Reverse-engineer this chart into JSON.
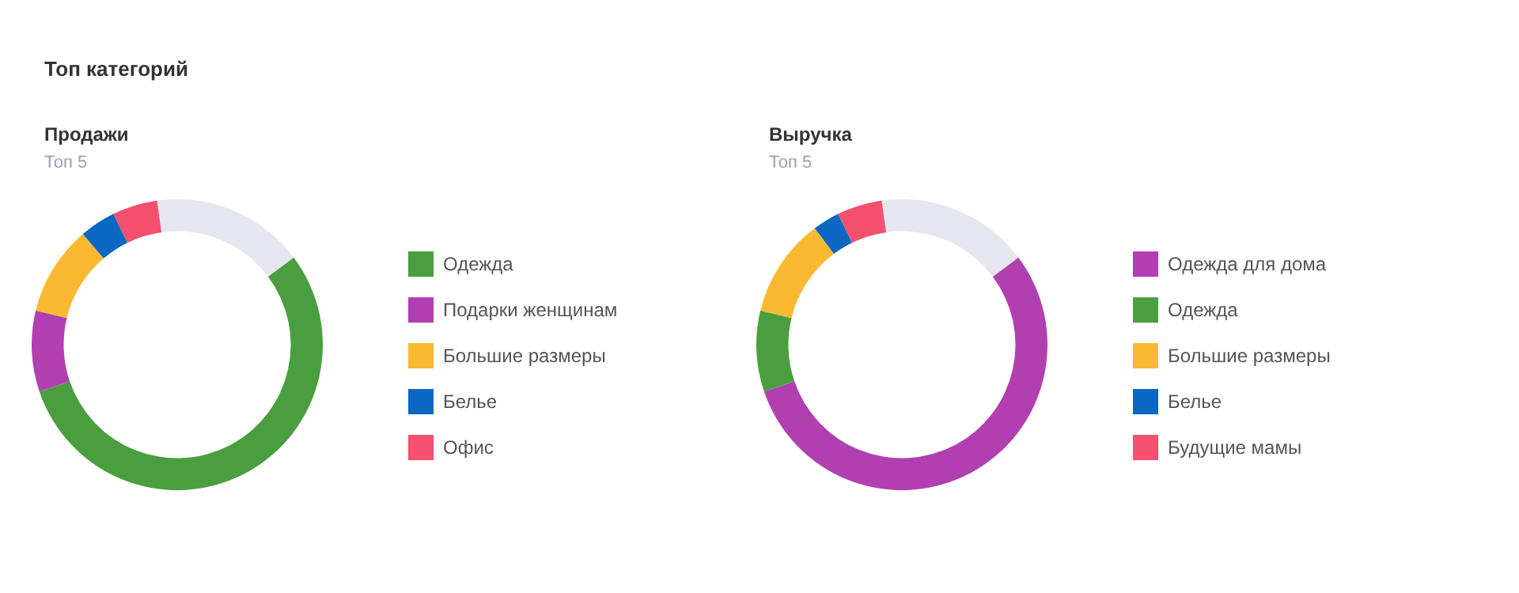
{
  "chart_data": [
    {
      "type": "other",
      "title": "Топ категорий"
    },
    {
      "type": "donut",
      "title": "Продажи",
      "subtitle": "Топ 5",
      "legend": "right",
      "categories": [
        null,
        "Одежда",
        "Подарки женщинам",
        "Большие размеры",
        "Белье",
        "Офис"
      ],
      "values": [
        17,
        55,
        9,
        10,
        4,
        5
      ],
      "colors": [
        "#e6e6f0",
        "#4a9e3f",
        "#b23fb0",
        "#fbb933",
        "#0a67c2",
        "#f5506e"
      ]
    },
    {
      "type": "donut",
      "title": "Выручка",
      "subtitle": "Топ 5",
      "legend": "right",
      "categories": [
        null,
        "Одежда для дома",
        "Одежда",
        "Большие размеры",
        "Белье",
        "Будущие мамы"
      ],
      "values": [
        17,
        55,
        9,
        11,
        3,
        5
      ],
      "colors": [
        "#e6e6f0",
        "#b23fb0",
        "#4a9e3f",
        "#fbb933",
        "#0a67c2",
        "#f5506e"
      ]
    }
  ]
}
